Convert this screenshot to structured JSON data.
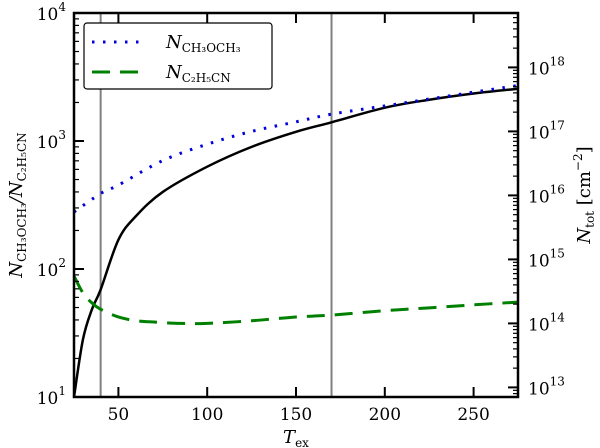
{
  "chart_data": {
    "type": "line",
    "xlabel": {
      "main": "T",
      "sub": "ex"
    },
    "ylabel_left": {
      "parts": [
        {
          "main": "N",
          "sub": "CH₃OCH₃"
        },
        {
          "main": "/N",
          "sub": "C₂H₅CN"
        }
      ]
    },
    "ylabel_right": {
      "main": "N",
      "sub": "tot",
      "unit": "[cm",
      "exp": "−2",
      "close": "]"
    },
    "xlim": [
      25,
      275
    ],
    "ylim_left": [
      10,
      10000
    ],
    "ylim_right_log10": [
      12.85,
      18.85
    ],
    "yscale": "log",
    "x_ticks": [
      50,
      100,
      150,
      200,
      250
    ],
    "x_tick_labels": [
      "50",
      "100",
      "150",
      "200",
      "250"
    ],
    "y_left_ticks": [
      {
        "base": "10",
        "exp": "1"
      },
      {
        "base": "10",
        "exp": "2"
      },
      {
        "base": "10",
        "exp": "3"
      },
      {
        "base": "10",
        "exp": "4"
      }
    ],
    "y_right_ticks": [
      {
        "base": "10",
        "exp": "13"
      },
      {
        "base": "10",
        "exp": "14"
      },
      {
        "base": "10",
        "exp": "15"
      },
      {
        "base": "10",
        "exp": "16"
      },
      {
        "base": "10",
        "exp": "17"
      },
      {
        "base": "10",
        "exp": "18"
      }
    ],
    "vertical_lines": [
      40,
      170
    ],
    "vertical_line_color": "#808080",
    "grid": false,
    "legend_placement": "top-left",
    "series": [
      {
        "name": "",
        "axis": "left",
        "style": "solid",
        "color": "#000000",
        "x": [
          25,
          30,
          35,
          40,
          50,
          60,
          75,
          100,
          125,
          150,
          170,
          200,
          225,
          250,
          275
        ],
        "y": [
          10,
          28,
          48,
          69,
          169,
          260,
          400,
          630,
          900,
          1180,
          1400,
          1820,
          2100,
          2350,
          2560
        ]
      },
      {
        "name": "N_CH₃OCH₃",
        "legend": {
          "main": "N",
          "sub": "CH₃OCH₃"
        },
        "axis": "right",
        "style": "dotted",
        "color": "#0000dd",
        "x": [
          25,
          40,
          50,
          75,
          100,
          125,
          150,
          170,
          200,
          225,
          250,
          275
        ],
        "y": [
          5500000000000000.0,
          1.07e+16,
          1.45e+16,
          3.5e+16,
          6.3e+16,
          1e+17,
          1.41e+17,
          1.86e+17,
          2.5e+17,
          3.2e+17,
          4.1e+17,
          5.2e+17
        ]
      },
      {
        "name": "N_C₂H₅CN",
        "legend": {
          "main": "N",
          "sub": "C₂H₅CN"
        },
        "axis": "right",
        "style": "dashed",
        "color": "#008000",
        "x": [
          25,
          30,
          35,
          40,
          50,
          60,
          70,
          85,
          100,
          125,
          150,
          170,
          200,
          225,
          250,
          275
        ],
        "y": [
          550000000000000.0,
          300000000000000.0,
          210000000000000.0,
          166000000000000.0,
          126000000000000.0,
          110000000000000.0,
          105000000000000.0,
          100000000000000.0,
          100000000000000.0,
          110000000000000.0,
          126000000000000.0,
          135000000000000.0,
          158000000000000.0,
          175000000000000.0,
          195000000000000.0,
          215000000000000.0
        ]
      }
    ]
  }
}
